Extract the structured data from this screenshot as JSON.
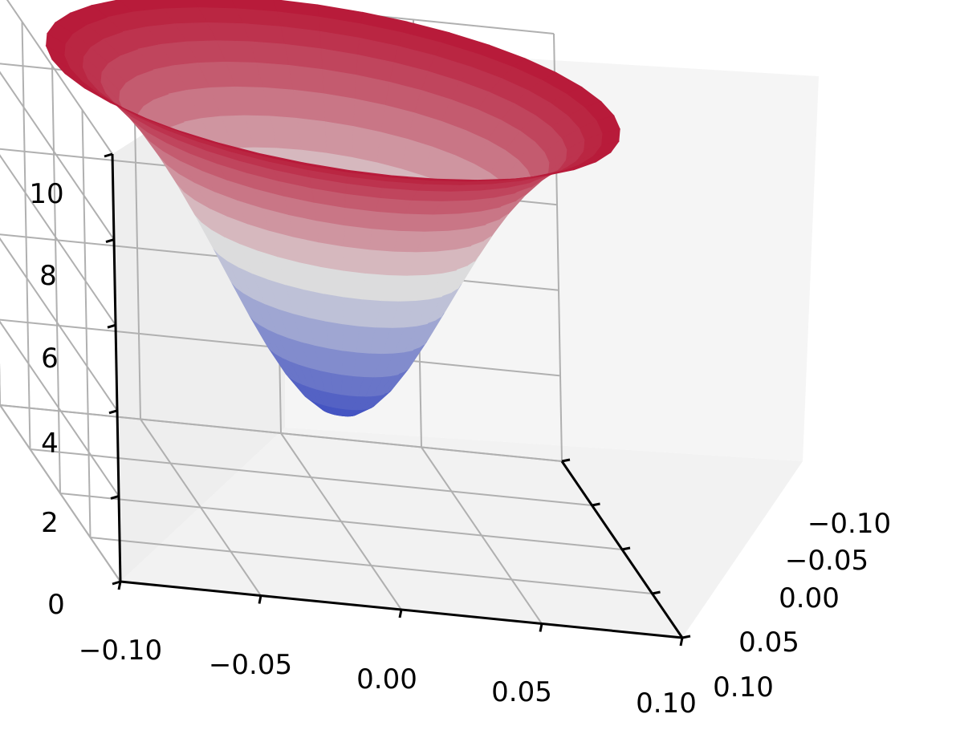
{
  "chart_data": {
    "type": "surface3d",
    "title": "",
    "xlabel": "",
    "ylabel": "",
    "zlabel": "",
    "x_ticks": [
      "−0.10",
      "−0.05",
      "0.00",
      "0.05",
      "0.10"
    ],
    "y_ticks": [
      "−0.10",
      "−0.05",
      "0.00",
      "0.05",
      "0.10"
    ],
    "z_ticks": [
      "0",
      "2",
      "4",
      "6",
      "8",
      "10"
    ],
    "xlim": [
      -0.1,
      0.1
    ],
    "ylim": [
      -0.1,
      0.1
    ],
    "zlim": [
      0,
      10
    ],
    "grid": true,
    "colormap": "coolwarm",
    "surface": {
      "shape": "funnel",
      "center": [
        0.0,
        0.0
      ],
      "min_z": 2.5,
      "max_z": 10.5,
      "width": 0.04,
      "domain": "disc",
      "radius": 0.1
    },
    "colors": {
      "pane": "#f2f2f2",
      "grid": "#b0b0b0",
      "axis": "#000000",
      "low": "#3b4cc0",
      "mid": "#dddddd",
      "high": "#b40426"
    }
  }
}
